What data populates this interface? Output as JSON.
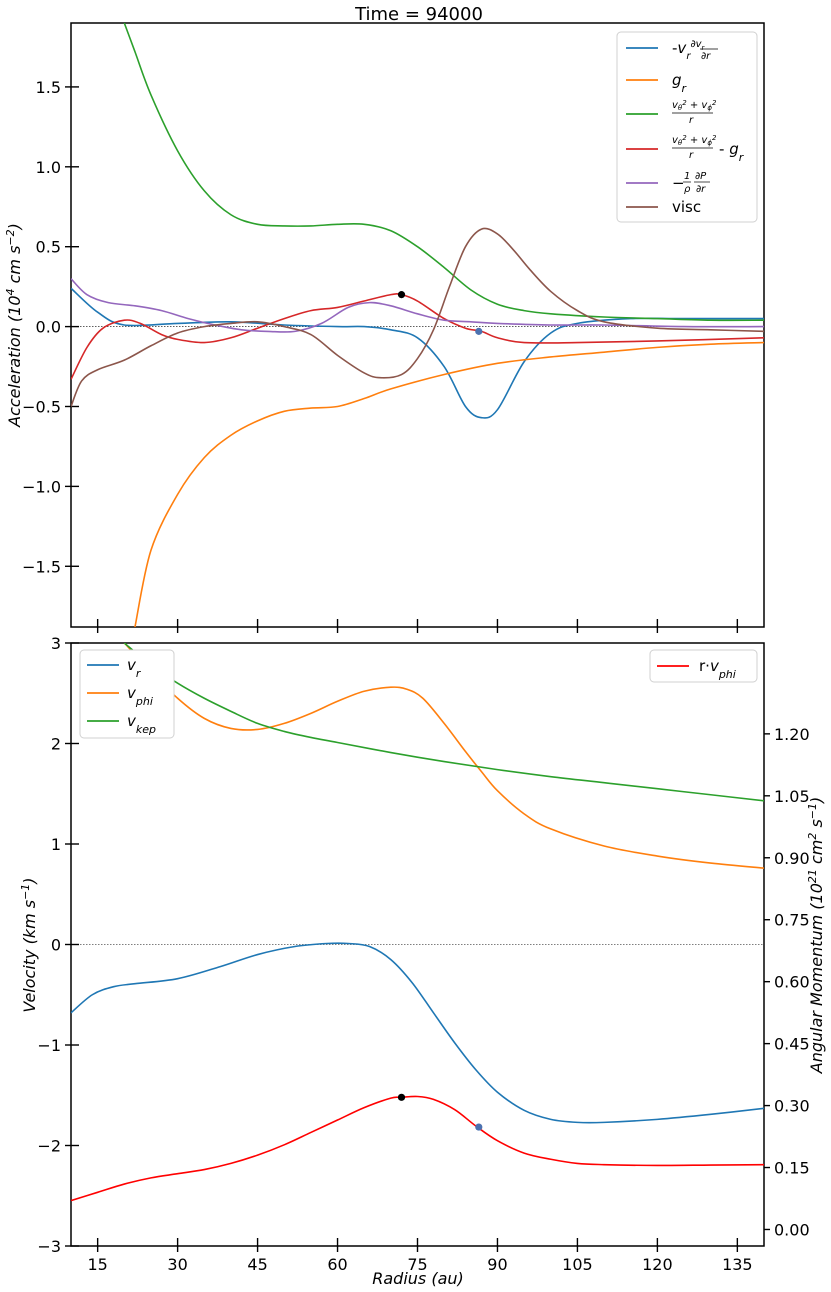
{
  "title": "Time = 94000",
  "chart_data": [
    {
      "type": "line",
      "panel": "top",
      "xlabel": "Radius (au)",
      "ylabel": "Acceleration (10^4 cm s^-2)",
      "xlim": [
        10,
        140
      ],
      "ylim": [
        -1.88,
        1.9
      ],
      "xticks": [
        15,
        30,
        45,
        60,
        75,
        90,
        105,
        120,
        135
      ],
      "yticks": [
        -1.5,
        -1.0,
        -0.5,
        0.0,
        0.5,
        1.0,
        1.5
      ],
      "ytick_labels": [
        "−1.5",
        "−1.0",
        "−0.5",
        "0.0",
        "0.5",
        "1.0",
        "1.5"
      ],
      "legend_position": "top-right",
      "zero_line": true,
      "series": [
        {
          "name": "-v_r dv_r/dr",
          "color": "#1f77b4",
          "x": [
            10,
            15,
            20,
            30,
            40,
            50,
            60,
            65,
            70,
            75,
            80,
            84,
            87,
            90,
            95,
            100,
            105,
            115,
            125,
            140
          ],
          "y": [
            0.24,
            0.09,
            0.01,
            0.02,
            0.03,
            0.01,
            0.0,
            0.0,
            -0.02,
            -0.07,
            -0.25,
            -0.5,
            -0.57,
            -0.52,
            -0.22,
            -0.04,
            0.02,
            0.05,
            0.05,
            0.05
          ]
        },
        {
          "name": "g_r",
          "color": "#ff7f0e",
          "x": [
            22,
            25,
            30,
            35,
            40,
            45,
            50,
            55,
            60,
            65,
            70,
            80,
            90,
            100,
            110,
            120,
            130,
            140
          ],
          "y": [
            -1.88,
            -1.4,
            -1.05,
            -0.82,
            -0.68,
            -0.59,
            -0.53,
            -0.51,
            -0.5,
            -0.45,
            -0.39,
            -0.3,
            -0.23,
            -0.19,
            -0.16,
            -0.13,
            -0.11,
            -0.1
          ]
        },
        {
          "name": "(v_theta^2 + v_phi^2)/r",
          "color": "#2ca02c",
          "x": [
            20,
            22,
            25,
            30,
            35,
            40,
            45,
            50,
            55,
            60,
            65,
            70,
            75,
            80,
            85,
            90,
            95,
            100,
            110,
            120,
            130,
            140
          ],
          "y": [
            1.9,
            1.72,
            1.45,
            1.1,
            0.85,
            0.7,
            0.64,
            0.63,
            0.63,
            0.64,
            0.64,
            0.6,
            0.5,
            0.37,
            0.23,
            0.14,
            0.1,
            0.08,
            0.06,
            0.05,
            0.04,
            0.04
          ]
        },
        {
          "name": "(v_theta^2 + v_phi^2)/r - g_r",
          "color": "#d62728",
          "x": [
            10,
            13,
            16,
            20,
            23,
            27,
            30,
            35,
            40,
            45,
            50,
            55,
            60,
            65,
            70,
            72,
            75,
            80,
            84,
            87,
            90,
            95,
            105,
            120,
            140
          ],
          "y": [
            -0.33,
            -0.13,
            -0.01,
            0.04,
            0.02,
            -0.05,
            -0.08,
            -0.1,
            -0.07,
            -0.01,
            0.05,
            0.1,
            0.12,
            0.16,
            0.2,
            0.2,
            0.16,
            0.05,
            -0.01,
            -0.03,
            -0.07,
            -0.1,
            -0.1,
            -0.09,
            -0.07
          ]
        },
        {
          "name": "-(1/rho) dP/dr",
          "color": "#9467bd",
          "x": [
            10,
            13,
            17,
            22,
            27,
            32,
            37,
            42,
            47,
            52,
            57,
            62,
            66,
            70,
            75,
            80,
            85,
            90,
            100,
            110,
            125,
            140
          ],
          "y": [
            0.3,
            0.2,
            0.15,
            0.13,
            0.1,
            0.05,
            0.01,
            -0.02,
            -0.03,
            -0.03,
            0.02,
            0.12,
            0.15,
            0.13,
            0.08,
            0.04,
            0.03,
            0.02,
            0.01,
            0.01,
            0.0,
            0.0
          ]
        },
        {
          "name": "visc",
          "color": "#8c564b",
          "x": [
            10,
            12,
            15,
            20,
            25,
            30,
            35,
            40,
            45,
            50,
            55,
            60,
            65,
            68,
            72,
            75,
            78,
            81,
            84,
            87,
            90,
            93,
            96,
            100,
            105,
            110,
            120,
            130,
            140
          ],
          "y": [
            -0.5,
            -0.34,
            -0.27,
            -0.21,
            -0.12,
            -0.04,
            0.0,
            0.02,
            0.03,
            0.0,
            -0.05,
            -0.18,
            -0.29,
            -0.32,
            -0.3,
            -0.2,
            -0.02,
            0.25,
            0.5,
            0.61,
            0.58,
            0.48,
            0.36,
            0.22,
            0.1,
            0.03,
            -0.01,
            -0.02,
            -0.03
          ]
        }
      ],
      "markers": [
        {
          "x": 72,
          "y": 0.2,
          "color": "#000000"
        },
        {
          "x": 86.5,
          "y": -0.03,
          "color": "#4c72b0"
        }
      ]
    },
    {
      "type": "line",
      "panel": "bottom",
      "xlabel": "Radius (au)",
      "ylabel": "Velocity (km s^-1)",
      "y2label": "Angular Momentum (10^21 cm^2 s^-1)",
      "xlim": [
        10,
        140
      ],
      "ylim": [
        -3,
        3
      ],
      "y2lim": [
        -0.04,
        1.42
      ],
      "xticks": [
        15,
        30,
        45,
        60,
        75,
        90,
        105,
        120,
        135
      ],
      "yticks": [
        -3,
        -2,
        -1,
        0,
        1,
        2,
        3
      ],
      "ytick_labels": [
        "−3",
        "−2",
        "−1",
        "0",
        "1",
        "2",
        "3"
      ],
      "y2ticks": [
        0.0,
        0.15,
        0.3,
        0.45,
        0.6,
        0.75,
        0.9,
        1.05,
        1.2
      ],
      "y2tick_labels": [
        "0.00",
        "0.15",
        "0.30",
        "0.45",
        "0.60",
        "0.75",
        "0.90",
        "1.05",
        "1.20"
      ],
      "legend_left_position": "top-left",
      "legend_right_position": "top-right",
      "zero_line": true,
      "series": [
        {
          "name": "v_r",
          "color": "#1f77b4",
          "axis": "left",
          "x": [
            10,
            14,
            18,
            22,
            30,
            38,
            45,
            52,
            58,
            62,
            66,
            70,
            74,
            78,
            82,
            86,
            90,
            95,
            100,
            105,
            110,
            120,
            130,
            140
          ],
          "y": [
            -0.68,
            -0.5,
            -0.42,
            -0.39,
            -0.34,
            -0.22,
            -0.1,
            -0.02,
            0.01,
            0.01,
            -0.02,
            -0.15,
            -0.38,
            -0.68,
            -0.98,
            -1.25,
            -1.47,
            -1.65,
            -1.74,
            -1.77,
            -1.77,
            -1.74,
            -1.69,
            -1.63
          ]
        },
        {
          "name": "v_phi",
          "color": "#ff7f0e",
          "axis": "left",
          "x": [
            20,
            25,
            30,
            35,
            40,
            45,
            50,
            55,
            60,
            65,
            70,
            73,
            76,
            80,
            84,
            87,
            90,
            95,
            100,
            110,
            120,
            130,
            140
          ],
          "y": [
            3.0,
            2.72,
            2.45,
            2.25,
            2.15,
            2.14,
            2.2,
            2.3,
            2.42,
            2.52,
            2.56,
            2.54,
            2.45,
            2.2,
            1.92,
            1.72,
            1.53,
            1.3,
            1.15,
            0.98,
            0.88,
            0.81,
            0.76
          ]
        },
        {
          "name": "v_kep",
          "color": "#2ca02c",
          "axis": "left",
          "x": [
            20,
            25,
            30,
            35,
            40,
            45,
            50,
            55,
            60,
            70,
            80,
            90,
            100,
            110,
            120,
            130,
            140
          ],
          "y": [
            3.0,
            2.78,
            2.6,
            2.45,
            2.32,
            2.2,
            2.12,
            2.06,
            2.01,
            1.91,
            1.82,
            1.74,
            1.67,
            1.61,
            1.55,
            1.49,
            1.43
          ]
        },
        {
          "name": "r·v_phi",
          "color": "#ff0000",
          "axis": "right",
          "x": [
            10,
            15,
            20,
            25,
            30,
            35,
            40,
            45,
            50,
            55,
            60,
            65,
            70,
            72,
            75,
            78,
            82,
            86,
            90,
            95,
            100,
            105,
            110,
            120,
            130,
            140
          ],
          "y": [
            0.07,
            0.09,
            0.11,
            0.125,
            0.135,
            0.145,
            0.16,
            0.18,
            0.205,
            0.235,
            0.265,
            0.295,
            0.318,
            0.32,
            0.322,
            0.315,
            0.29,
            0.25,
            0.215,
            0.185,
            0.17,
            0.16,
            0.157,
            0.155,
            0.156,
            0.157
          ]
        }
      ],
      "markers": [
        {
          "x": 72,
          "y": 0.32,
          "axis": "right",
          "color": "#000000"
        },
        {
          "x": 86.5,
          "y": 0.248,
          "axis": "right",
          "color": "#4c72b0"
        }
      ]
    }
  ]
}
